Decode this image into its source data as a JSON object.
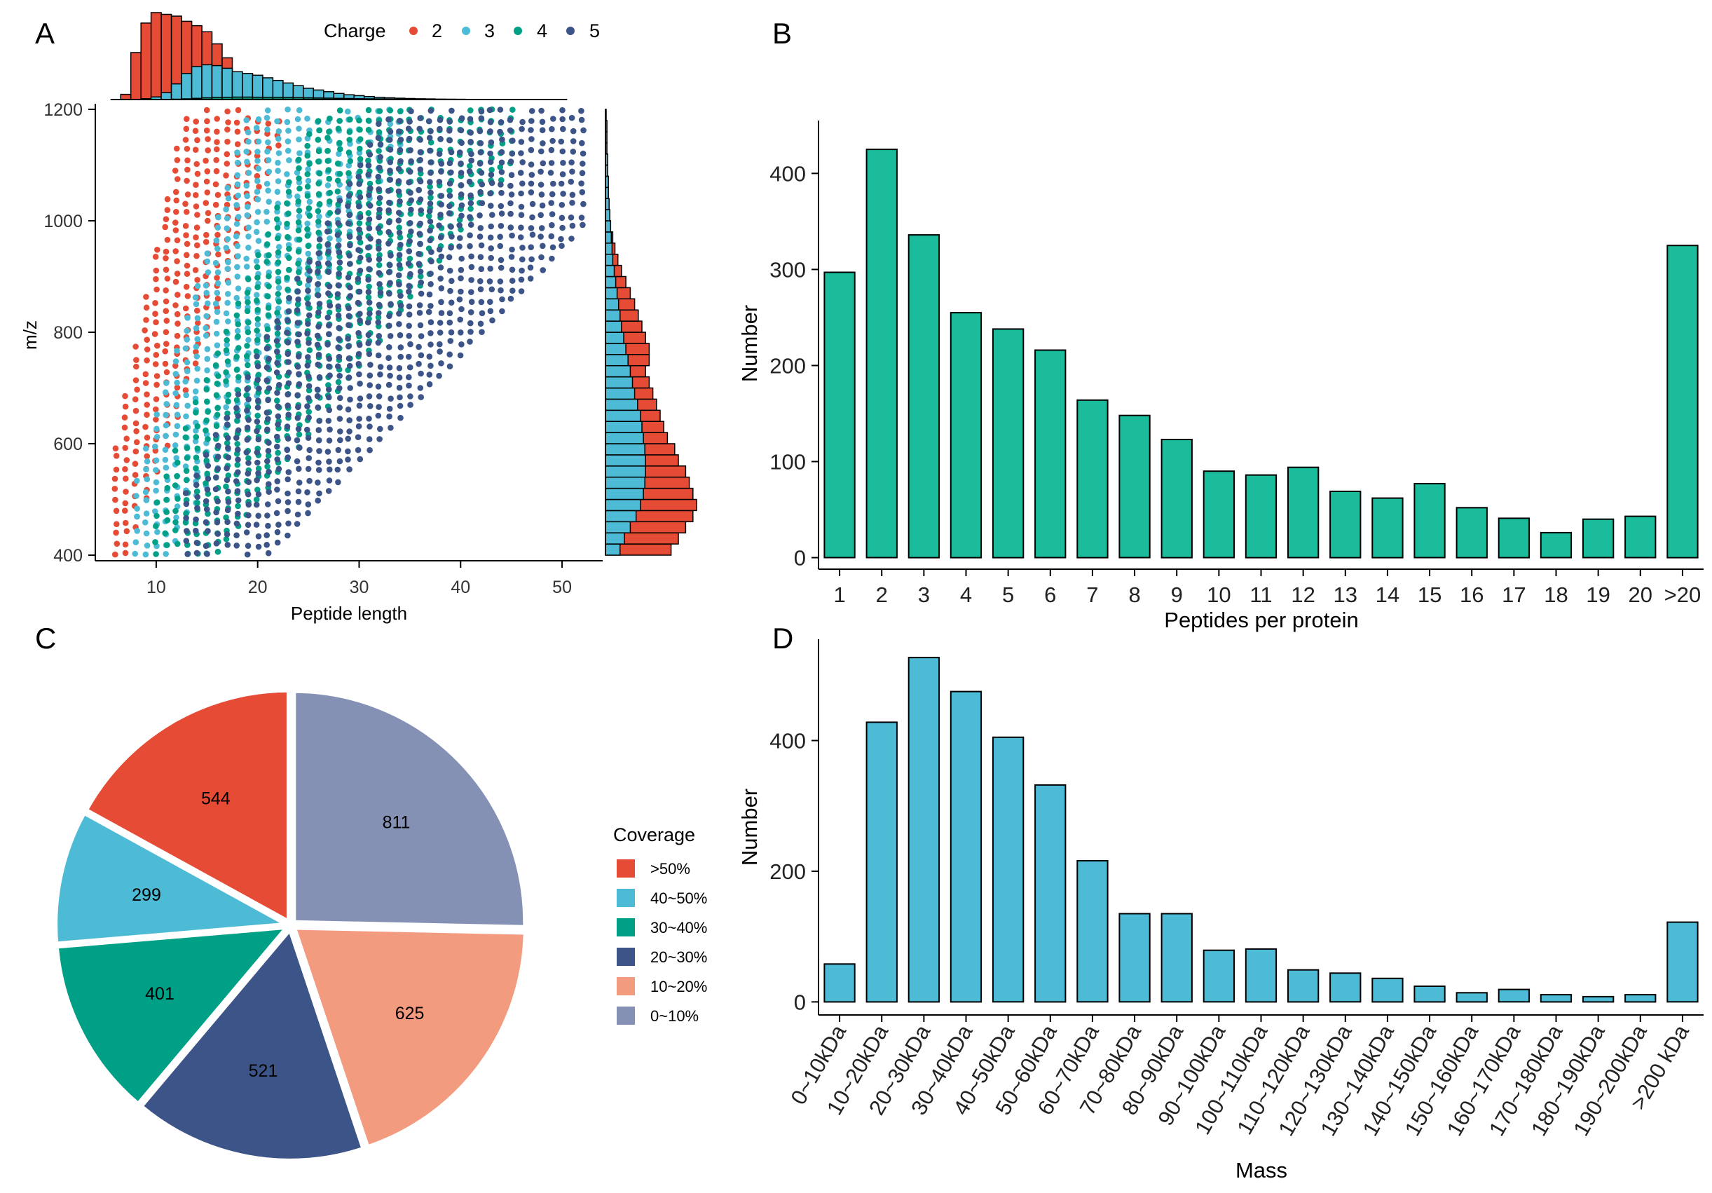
{
  "panels": {
    "A": {
      "letter": "A",
      "chart_data": {
        "type": "scatter",
        "xlabel": "Peptide length",
        "ylabel": "m/z",
        "xlim": [
          4,
          54
        ],
        "ylim": [
          390,
          1210
        ],
        "xticks": [
          10,
          20,
          30,
          40,
          50
        ],
        "yticks": [
          400,
          600,
          800,
          1000,
          1200
        ],
        "legend_title": "Charge",
        "legend_position": "top",
        "series": [
          {
            "name": "2",
            "color": "#E64B35"
          },
          {
            "name": "3",
            "color": "#4DBBD5"
          },
          {
            "name": "4",
            "color": "#00A087"
          },
          {
            "name": "5",
            "color": "#3C5488"
          }
        ],
        "marginal_top": {
          "type": "histogram",
          "bins": [
            7,
            8,
            9,
            10,
            11,
            12,
            13,
            14,
            15,
            16,
            17,
            18,
            19,
            20,
            21,
            22,
            23,
            24,
            25,
            26,
            27,
            28,
            29,
            30,
            31,
            32,
            33,
            34,
            35,
            36,
            37,
            38,
            39,
            40,
            41,
            42,
            43,
            44,
            45,
            46,
            47,
            48,
            49,
            50
          ],
          "charge2": [
            60,
            540,
            880,
            1000,
            980,
            960,
            900,
            850,
            780,
            640,
            480,
            300,
            180,
            90,
            50,
            25,
            12,
            6,
            3,
            2,
            1,
            1,
            0,
            0,
            0,
            0,
            0,
            0,
            0,
            0,
            0,
            0,
            0,
            0,
            0,
            0,
            0,
            0,
            0,
            0,
            0,
            0,
            0,
            0
          ],
          "charge3": [
            0,
            2,
            10,
            30,
            80,
            180,
            300,
            380,
            400,
            390,
            360,
            320,
            300,
            280,
            250,
            220,
            190,
            160,
            130,
            110,
            90,
            70,
            55,
            45,
            35,
            25,
            20,
            15,
            12,
            9,
            7,
            5,
            4,
            3,
            2,
            2,
            1,
            1,
            1,
            0,
            0,
            0,
            0,
            0
          ],
          "charge4": [
            0,
            0,
            0,
            0,
            2,
            4,
            8,
            14,
            20,
            24,
            26,
            28,
            28,
            27,
            26,
            25,
            24,
            22,
            20,
            18,
            16,
            14,
            12,
            10,
            8,
            7,
            6,
            5,
            4,
            3,
            3,
            2,
            2,
            2,
            1,
            1,
            1,
            1,
            1,
            1,
            0,
            0,
            0,
            0
          ],
          "charge5": [
            0,
            0,
            0,
            0,
            0,
            0,
            0,
            1,
            1,
            2,
            2,
            3,
            3,
            3,
            3,
            3,
            3,
            3,
            3,
            3,
            2,
            2,
            2,
            2,
            2,
            2,
            1,
            1,
            1,
            1,
            1,
            1,
            1,
            1,
            1,
            0,
            0,
            0,
            0,
            0,
            0,
            0,
            0,
            0
          ]
        },
        "marginal_right": {
          "type": "histogram",
          "bins": [
            410,
            430,
            450,
            470,
            490,
            510,
            530,
            550,
            570,
            590,
            610,
            630,
            650,
            670,
            690,
            710,
            730,
            750,
            770,
            790,
            810,
            830,
            850,
            870,
            890,
            910,
            930,
            950,
            970,
            990,
            1010,
            1030,
            1050,
            1070,
            1090,
            1110,
            1130,
            1150,
            1170,
            1190
          ],
          "charge3": [
            20,
            26,
            34,
            42,
            48,
            52,
            54,
            55,
            55,
            54,
            52,
            50,
            48,
            44,
            40,
            37,
            34,
            31,
            28,
            25,
            22,
            20,
            18,
            16,
            14,
            12,
            10,
            9,
            8,
            7,
            6,
            5,
            4,
            4,
            3,
            3,
            2,
            2,
            2,
            1
          ],
          "charge2": [
            90,
            100,
            110,
            120,
            125,
            120,
            115,
            110,
            100,
            95,
            85,
            80,
            75,
            70,
            65,
            60,
            55,
            60,
            60,
            55,
            50,
            45,
            40,
            34,
            28,
            22,
            17,
            13,
            10,
            7,
            5,
            4,
            3,
            2,
            2,
            1,
            1,
            1,
            0,
            0
          ]
        }
      }
    },
    "B": {
      "letter": "B",
      "chart_data": {
        "type": "bar",
        "xlabel": "Peptides per protein",
        "ylabel": "Number",
        "categories": [
          "1",
          "2",
          "3",
          "4",
          "5",
          "6",
          "7",
          "8",
          "9",
          "10",
          "11",
          "12",
          "13",
          "14",
          "15",
          "16",
          "17",
          "18",
          "19",
          "20",
          ">20"
        ],
        "values": [
          297,
          425,
          336,
          255,
          238,
          216,
          164,
          148,
          123,
          90,
          86,
          94,
          69,
          62,
          77,
          52,
          41,
          26,
          40,
          43,
          325
        ],
        "ylim": [
          -12,
          455
        ],
        "yticks": [
          0,
          100,
          200,
          300,
          400
        ],
        "color": "#1ABC9C"
      }
    },
    "C": {
      "letter": "C",
      "chart_data": {
        "type": "pie",
        "legend_title": "Coverage",
        "legend_position": "right",
        "slices": [
          {
            "label": ">50%",
            "value": 544,
            "text": "544",
            "color": "#E64B35"
          },
          {
            "label": "40~50%",
            "value": 299,
            "text": "299",
            "color": "#4DBBD5"
          },
          {
            "label": "30~40%",
            "value": 401,
            "text": "401",
            "color": "#00A087"
          },
          {
            "label": "20~30%",
            "value": 521,
            "text": "521",
            "color": "#3C5488"
          },
          {
            "label": "10~20%",
            "value": 625,
            "text": "625",
            "color": "#F39B7F"
          },
          {
            "label": "0~10%",
            "value": 811,
            "text": "811",
            "color": "#8491B4"
          }
        ]
      }
    },
    "D": {
      "letter": "D",
      "chart_data": {
        "type": "bar",
        "xlabel": "Mass",
        "ylabel": "Number",
        "categories": [
          "0~10kDa",
          "10~20kDa",
          "20~30kDa",
          "30~40kDa",
          "40~50kDa",
          "50~60kDa",
          "60~70kDa",
          "70~80kDa",
          "80~90kDa",
          "90~100kDa",
          "100~110kDa",
          "110~120kDa",
          "120~130kDa",
          "130~140kDa",
          "140~150kDa",
          "150~160kDa",
          "160~170kDa",
          "170~180kDa",
          "180~190kDa",
          "190~200kDa",
          ">200 kDa"
        ],
        "values": [
          58,
          428,
          527,
          475,
          405,
          332,
          216,
          135,
          135,
          79,
          81,
          49,
          44,
          36,
          24,
          14,
          19,
          11,
          8,
          11,
          122
        ],
        "ylim": [
          -20,
          555
        ],
        "yticks": [
          0,
          200,
          400
        ],
        "color": "#4DBBD5"
      }
    }
  }
}
